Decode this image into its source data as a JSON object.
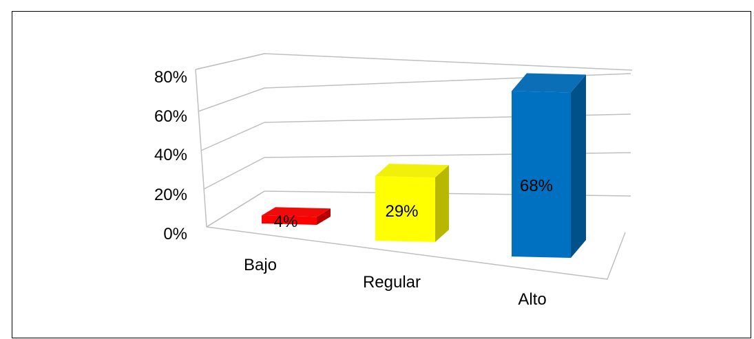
{
  "chart_data": {
    "type": "bar",
    "categories": [
      "Bajo",
      "Regular",
      "Alto"
    ],
    "values": [
      4,
      29,
      68
    ],
    "value_labels": [
      "4%",
      "29%",
      "68%"
    ],
    "colors": [
      "#ff0000",
      "#ffff00",
      "#0070c0"
    ],
    "y_ticks": [
      "0%",
      "20%",
      "40%",
      "60%",
      "80%"
    ],
    "ylim": [
      0,
      80
    ],
    "grid": true,
    "legend": "none",
    "style": "3d-perspective"
  }
}
